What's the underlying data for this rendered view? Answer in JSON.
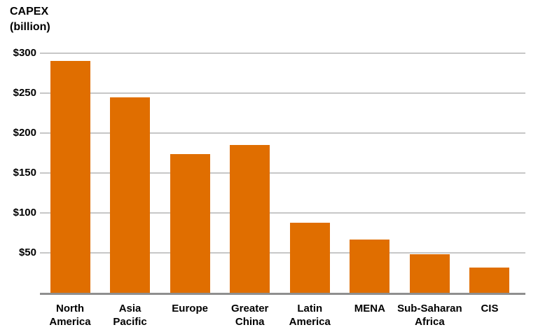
{
  "title": {
    "line1": "CAPEX",
    "line2": "(billion)"
  },
  "colors": {
    "bar": "#E06E00",
    "gridline": "#C7C7C7",
    "axis_line": "#8F8F8F",
    "text": "#000000"
  },
  "chart_data": {
    "type": "bar",
    "title": "CAPEX (billion)",
    "ylabel": "CAPEX (billion)",
    "xlabel": "",
    "categories": [
      "North America",
      "Asia Pacific",
      "Europe",
      "Greater China",
      "Latin America",
      "MENA",
      "Sub-Saharan Africa",
      "CIS"
    ],
    "category_lines": [
      [
        "North",
        "America"
      ],
      [
        "Asia",
        "Pacific"
      ],
      [
        "Europe"
      ],
      [
        "Greater",
        "China"
      ],
      [
        "Latin",
        "America"
      ],
      [
        "MENA"
      ],
      [
        "Sub-Saharan",
        "Africa"
      ],
      [
        "CIS"
      ]
    ],
    "values": [
      290,
      245,
      174,
      185,
      88,
      67,
      48,
      32
    ],
    "ylim": [
      0,
      300
    ],
    "yticks": [
      50,
      100,
      150,
      200,
      250,
      300
    ],
    "ytick_labels": [
      "$50",
      "$100",
      "$150",
      "$200",
      "$250",
      "$300"
    ],
    "grid": true,
    "legend": false,
    "legend_position": "none",
    "bar_color": "#E06E00"
  }
}
